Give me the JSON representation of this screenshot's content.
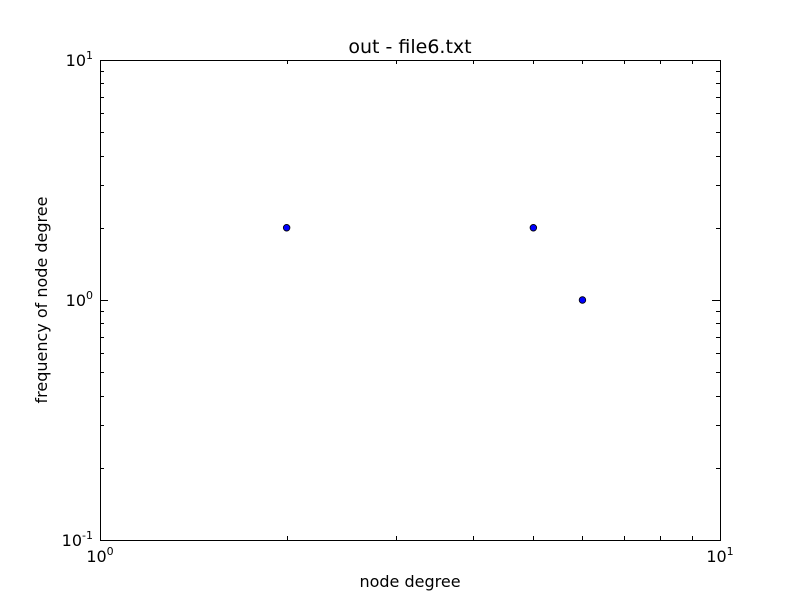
{
  "chart_data": {
    "type": "scatter",
    "title": "out - file6.txt",
    "xlabel": "node degree",
    "ylabel": "frequency of node degree",
    "xscale": "log",
    "yscale": "log",
    "xlim": [
      1,
      10
    ],
    "ylim": [
      0.1,
      10
    ],
    "x_ticks": [
      {
        "base": "10",
        "exp": "0"
      },
      {
        "base": "10",
        "exp": "1"
      }
    ],
    "y_ticks": [
      {
        "base": "10",
        "exp": "-1"
      },
      {
        "base": "10",
        "exp": "0"
      },
      {
        "base": "10",
        "exp": "1"
      }
    ],
    "x_tick_values": [
      1,
      10
    ],
    "y_tick_values": [
      0.1,
      1,
      10
    ],
    "marker_color": "#0000ff",
    "points": [
      {
        "x": 2,
        "y": 2
      },
      {
        "x": 5,
        "y": 2
      },
      {
        "x": 6,
        "y": 1
      }
    ]
  }
}
